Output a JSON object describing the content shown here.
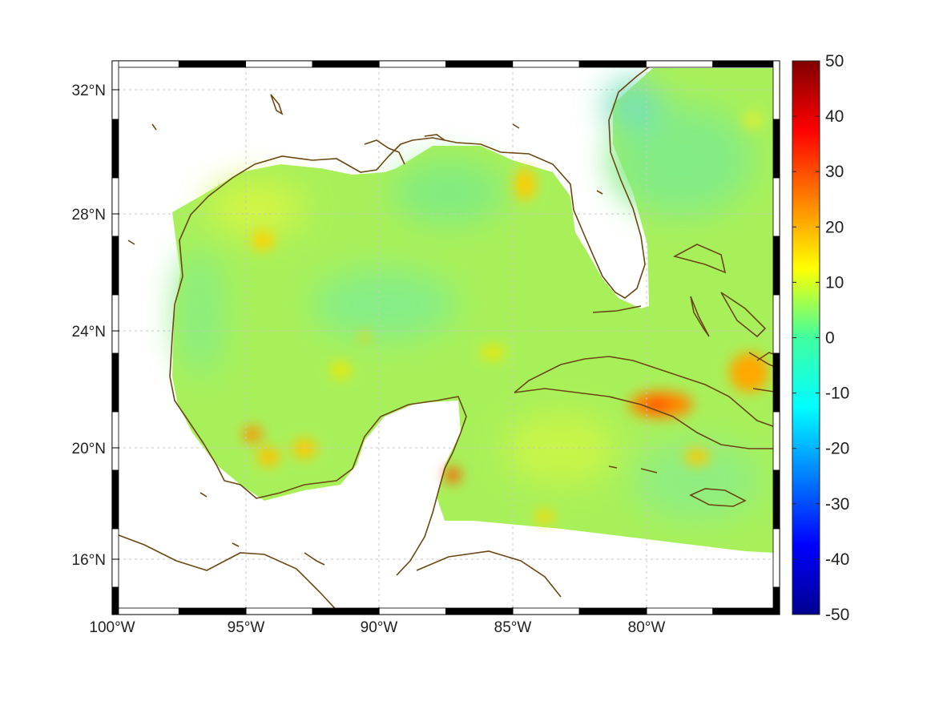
{
  "map": {
    "lon_labels": [
      "100°W",
      "95°W",
      "90°W",
      "85°W",
      "80°W"
    ],
    "lat_labels": [
      "32°N",
      "28°N",
      "24°N",
      "20°N",
      "16°N"
    ],
    "lon_range": [
      -100,
      -75
    ],
    "lat_range": [
      14.2,
      33
    ],
    "grid": true,
    "coastline_color": "#6b4712"
  },
  "colorbar": {
    "ticks": [
      "50",
      "40",
      "30",
      "20",
      "10",
      "0",
      "-10",
      "-20",
      "-30",
      "-40",
      "-50"
    ],
    "range": [
      -50,
      50
    ],
    "colormap": "jet"
  },
  "hotspots": [
    {
      "name": "hotspot-cuba",
      "value": 28
    },
    {
      "name": "hotspot-yucatan",
      "value": 25
    },
    {
      "name": "hotspot-bay-of-campeche",
      "value": 22
    },
    {
      "name": "hotspot-hispaniola",
      "value": 20
    },
    {
      "name": "hotspot-texas-shelf",
      "value": 15
    },
    {
      "name": "hotspot-florida-panhandle",
      "value": 14
    }
  ]
}
